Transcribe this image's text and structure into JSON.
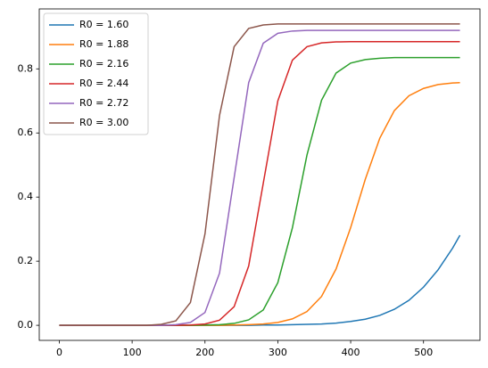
{
  "chart_data": {
    "type": "line",
    "x": [
      0,
      20,
      40,
      60,
      80,
      100,
      120,
      140,
      160,
      180,
      200,
      220,
      240,
      260,
      280,
      300,
      320,
      340,
      360,
      380,
      400,
      420,
      440,
      460,
      480,
      500,
      520,
      540,
      550
    ],
    "series": [
      {
        "name": "R0 = 1.60",
        "color": "#1f77b4",
        "values": [
          0,
          0,
          0,
          0,
          0,
          0,
          0,
          0,
          0,
          0,
          0,
          0,
          0,
          0,
          0.001,
          0.001,
          0.002,
          0.003,
          0.004,
          0.007,
          0.012,
          0.019,
          0.031,
          0.05,
          0.078,
          0.119,
          0.173,
          0.241,
          0.281
        ]
      },
      {
        "name": "R0 = 1.88",
        "color": "#ff7f0e",
        "values": [
          0,
          0,
          0,
          0,
          0,
          0,
          0,
          0,
          0,
          0,
          0,
          0,
          0.001,
          0.002,
          0.004,
          0.009,
          0.02,
          0.043,
          0.09,
          0.176,
          0.305,
          0.455,
          0.584,
          0.67,
          0.716,
          0.739,
          0.751,
          0.756,
          0.757
        ]
      },
      {
        "name": "R0 = 2.16",
        "color": "#2ca02c",
        "values": [
          0,
          0,
          0,
          0,
          0,
          0,
          0,
          0,
          0,
          0,
          0.001,
          0.002,
          0.006,
          0.017,
          0.048,
          0.133,
          0.304,
          0.531,
          0.702,
          0.787,
          0.818,
          0.829,
          0.833,
          0.835,
          0.835,
          0.835,
          0.835,
          0.835,
          0.835
        ]
      },
      {
        "name": "R0 = 2.44",
        "color": "#d62728",
        "values": [
          0,
          0,
          0,
          0,
          0,
          0,
          0,
          0,
          0,
          0.001,
          0.004,
          0.016,
          0.058,
          0.185,
          0.443,
          0.7,
          0.827,
          0.869,
          0.881,
          0.884,
          0.885,
          0.885,
          0.885,
          0.885,
          0.885,
          0.885,
          0.885,
          0.885,
          0.885
        ]
      },
      {
        "name": "R0 = 2.72",
        "color": "#9467bd",
        "values": [
          0,
          0,
          0,
          0,
          0,
          0,
          0,
          0,
          0.002,
          0.009,
          0.04,
          0.163,
          0.46,
          0.757,
          0.88,
          0.911,
          0.918,
          0.92,
          0.92,
          0.92,
          0.92,
          0.92,
          0.92,
          0.92,
          0.92,
          0.92,
          0.92,
          0.92,
          0.92
        ]
      },
      {
        "name": "R0 = 3.00",
        "color": "#8c564b",
        "values": [
          0,
          0,
          0,
          0,
          0,
          0,
          0,
          0.003,
          0.014,
          0.071,
          0.285,
          0.655,
          0.869,
          0.926,
          0.937,
          0.94,
          0.94,
          0.94,
          0.94,
          0.94,
          0.94,
          0.94,
          0.94,
          0.94,
          0.94,
          0.94,
          0.94,
          0.94,
          0.94
        ]
      }
    ],
    "xlim": [
      -27.5,
      577.5
    ],
    "xticks": [
      0,
      100,
      200,
      300,
      400,
      500
    ],
    "ylim": [
      -0.047,
      0.987
    ],
    "yticks": [
      {
        "value": 0,
        "label": "0.0"
      },
      0.2,
      0.4,
      0.6,
      0.8
    ],
    "grid": false,
    "legend": "upper left"
  }
}
